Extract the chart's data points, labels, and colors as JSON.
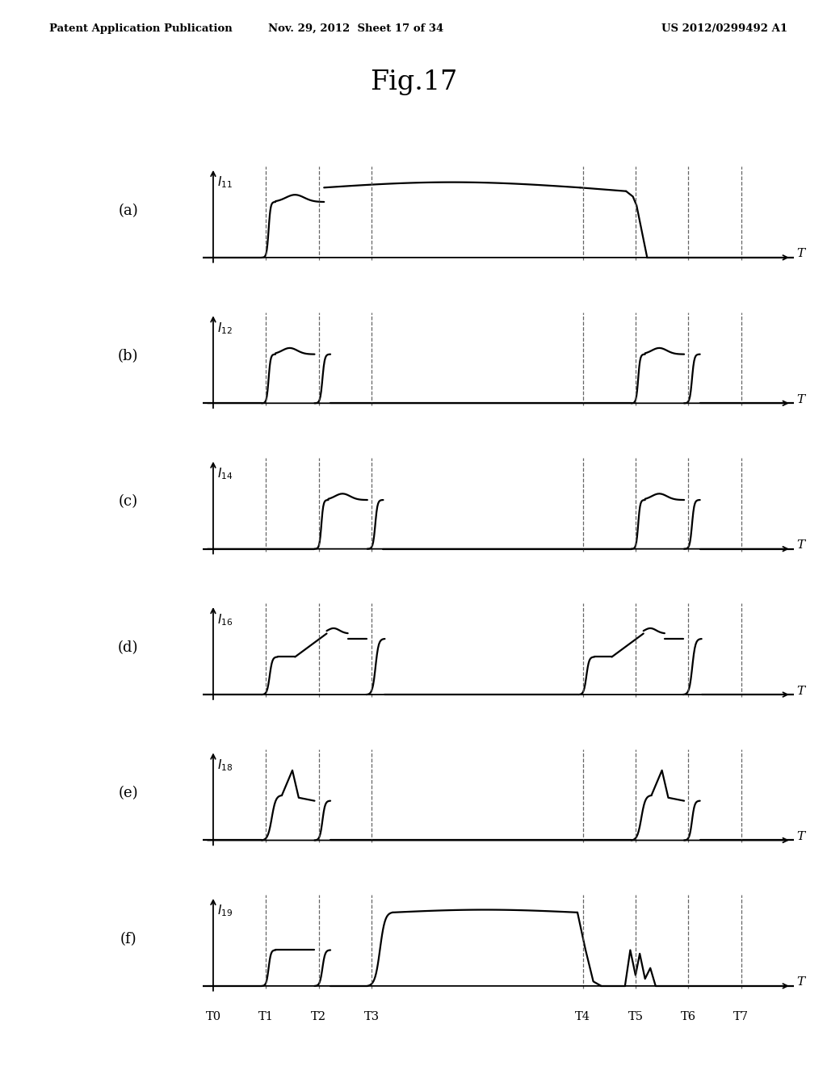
{
  "title": "Fig.17",
  "header_left": "Patent Application Publication",
  "header_center": "Nov. 29, 2012  Sheet 17 of 34",
  "header_right": "US 2012/0299492 A1",
  "subplots": [
    "(a)",
    "(b)",
    "(c)",
    "(d)",
    "(e)",
    "(f)"
  ],
  "ylabels": [
    "I11",
    "I12",
    "I14",
    "I16",
    "I18",
    "I19"
  ],
  "ysubscripts": [
    "11",
    "12",
    "14",
    "16",
    "18",
    "19"
  ],
  "T_labels": [
    "T0",
    "T1",
    "T2",
    "T3",
    "T4",
    "T5",
    "T6",
    "T7"
  ],
  "T_positions": [
    0.0,
    1.0,
    2.0,
    3.0,
    7.0,
    8.0,
    9.0,
    10.0
  ],
  "dashed_T_positions": [
    1.0,
    2.0,
    3.0,
    7.0,
    8.0,
    9.0,
    10.0
  ],
  "x_min": -0.2,
  "x_max": 11.0,
  "background_color": "#ffffff",
  "line_color": "#000000",
  "dashed_color": "#555555",
  "lw": 1.6
}
